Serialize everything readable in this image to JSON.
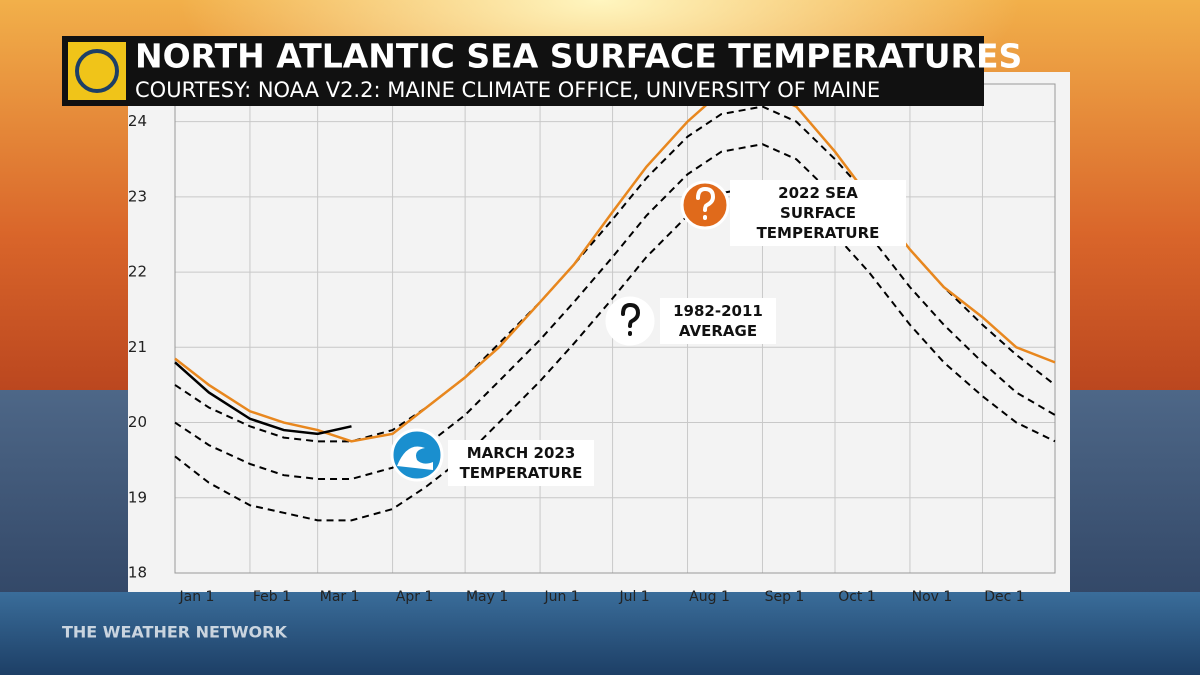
{
  "chart_data": {
    "type": "line",
    "title": "NORTH ATLANTIC SEA SURFACE TEMPERATURES",
    "subtitle": "COURTESY: NOAA V2.2: MAINE CLIMATE OFFICE, UNIVERSITY OF MAINE",
    "watermark": "THE WEATHER NETWORK",
    "annotations": [
      "2022 SEA SURFACE TEMPERATURE",
      "1982-2011 AVERAGE",
      "MARCH 2023 TEMPERATURE"
    ],
    "x": [
      1,
      15,
      32,
      46,
      60,
      74,
      91,
      105,
      121,
      135,
      152,
      166,
      182,
      196,
      213,
      227,
      244,
      258,
      274,
      288,
      305,
      319,
      335,
      349,
      365
    ],
    "xlim": [
      1,
      365
    ],
    "xticks": [
      {
        "value": 1,
        "label": "Jan 1"
      },
      {
        "value": 32,
        "label": "Feb 1"
      },
      {
        "value": 60,
        "label": "Mar 1"
      },
      {
        "value": 91,
        "label": "Apr 1"
      },
      {
        "value": 121,
        "label": "May 1"
      },
      {
        "value": 152,
        "label": "Jun 1"
      },
      {
        "value": 182,
        "label": "Jul 1"
      },
      {
        "value": 213,
        "label": "Aug 1"
      },
      {
        "value": 244,
        "label": "Sep 1"
      },
      {
        "value": 274,
        "label": "Oct 1"
      },
      {
        "value": 305,
        "label": "Nov 1"
      },
      {
        "value": 335,
        "label": "Dec 1"
      }
    ],
    "ylim": [
      18,
      24.5
    ],
    "yticks": [
      18,
      19,
      20,
      21,
      22,
      23,
      24
    ],
    "grid": true,
    "series": [
      {
        "color": "#000000",
        "dash": true,
        "values": [
          20.5,
          20.2,
          19.95,
          19.8,
          19.75,
          19.75,
          19.9,
          20.2,
          20.6,
          21.05,
          21.6,
          22.1,
          22.7,
          23.25,
          23.8,
          24.1,
          24.2,
          24.0,
          23.5,
          23.0,
          22.3,
          21.8,
          21.3,
          20.9,
          20.5
        ]
      },
      {
        "color": "#000000",
        "dash": true,
        "values": [
          20.0,
          19.7,
          19.45,
          19.3,
          19.25,
          19.25,
          19.4,
          19.7,
          20.1,
          20.55,
          21.1,
          21.6,
          22.2,
          22.75,
          23.3,
          23.6,
          23.7,
          23.5,
          23.0,
          22.5,
          21.8,
          21.3,
          20.8,
          20.4,
          20.1
        ]
      },
      {
        "color": "#000000",
        "dash": true,
        "values": [
          19.55,
          19.2,
          18.9,
          18.8,
          18.7,
          18.7,
          18.85,
          19.15,
          19.55,
          20.0,
          20.55,
          21.05,
          21.65,
          22.2,
          22.75,
          23.05,
          23.15,
          22.95,
          22.5,
          22.0,
          21.3,
          20.8,
          20.35,
          20.0,
          19.75
        ]
      },
      {
        "color": "#e8871e",
        "dash": false,
        "values": [
          20.85,
          20.5,
          20.15,
          20.0,
          19.9,
          19.75,
          19.85,
          20.2,
          20.6,
          21.0,
          21.6,
          22.1,
          22.8,
          23.4,
          24.0,
          24.4,
          24.4,
          24.2,
          23.6,
          23.0,
          22.3,
          21.8,
          21.4,
          21.0,
          20.8
        ]
      },
      {
        "color": "#000000",
        "dash": false,
        "values": [
          20.8,
          20.4,
          20.05,
          19.9,
          19.85,
          19.95,
          null,
          null,
          null,
          null,
          null,
          null,
          null,
          null,
          null,
          null,
          null,
          null,
          null,
          null,
          null,
          null,
          null,
          null,
          null
        ]
      }
    ]
  }
}
